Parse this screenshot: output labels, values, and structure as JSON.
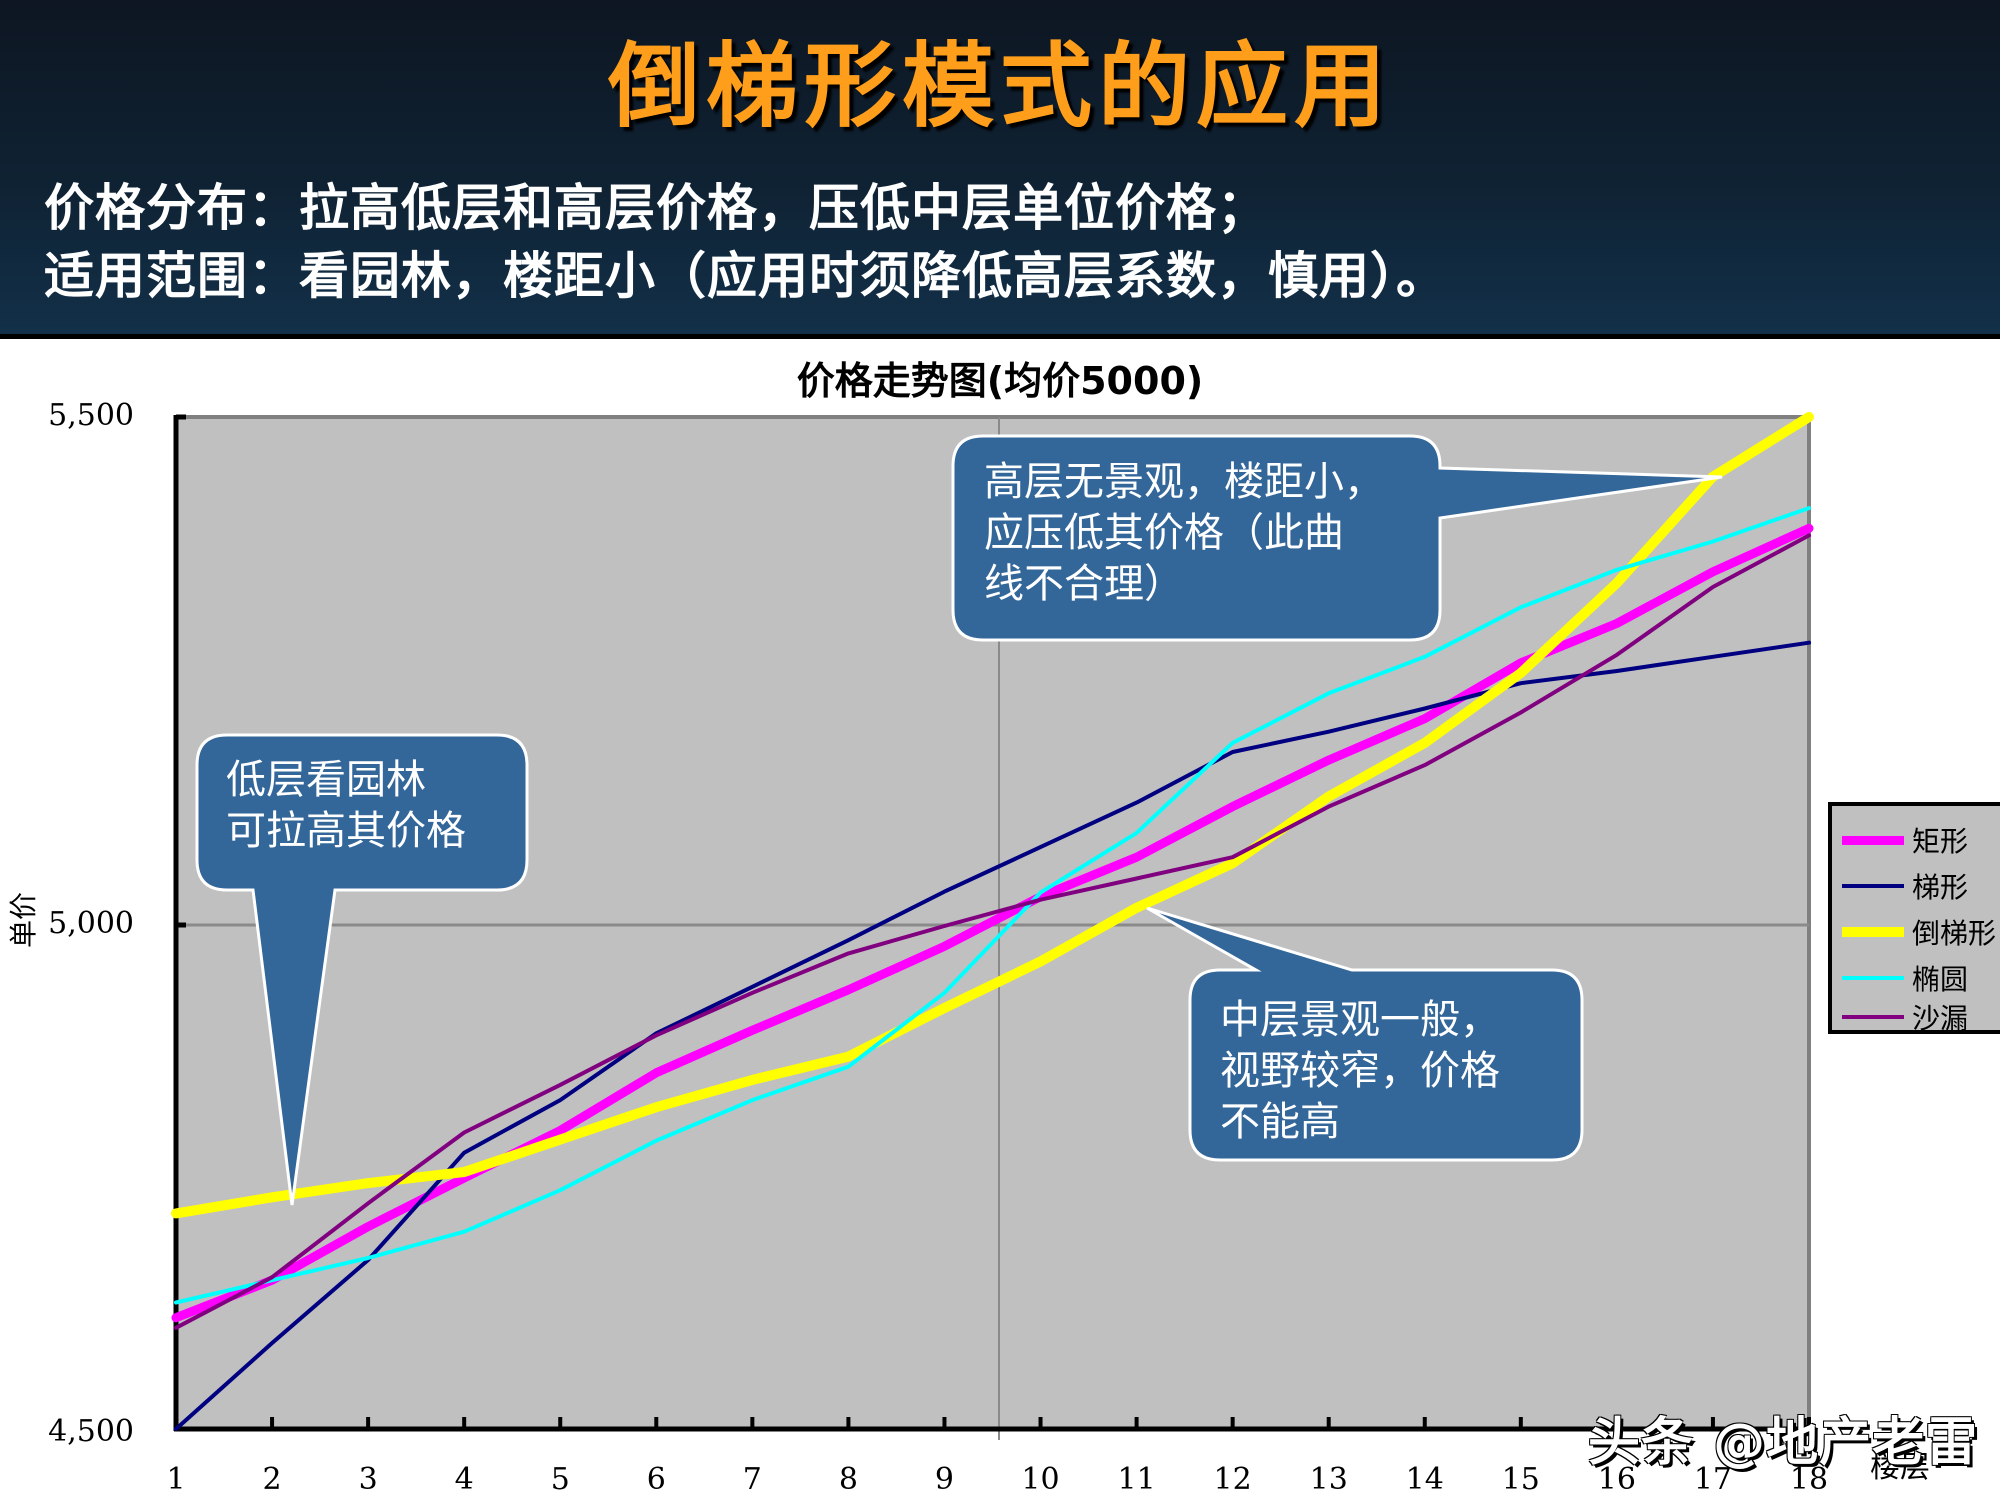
{
  "slide": {
    "title": "倒梯形模式的应用",
    "subtitle_lines": [
      "价格分布：拉高低层和高层价格，压低中层单位价格；",
      "适用范围：看园林，楼距小（应用时须降低高层系数，慎用）。"
    ],
    "colors": {
      "header_bg": "#0f2233",
      "title": "#ff9e1b",
      "subtitle": "#ffffff",
      "callout_bg": "#336699",
      "plot_bg": "#c0c0c0"
    }
  },
  "callouts": [
    {
      "id": "high-floor-note",
      "lines": [
        "高层无景观，楼距小，",
        "应压低其价格（此曲",
        "线不合理）"
      ]
    },
    {
      "id": "low-floor-note",
      "lines": [
        "低层看园林",
        "可拉高其价格"
      ]
    },
    {
      "id": "mid-floor-note",
      "lines": [
        "中层景观一般，",
        "视野较窄，价格",
        "不能高"
      ]
    }
  ],
  "watermark": "头条 @地产老雷",
  "chart_data": {
    "type": "line",
    "title": "价格走势图(均价5000)",
    "xlabel": "楼层",
    "ylabel": "单价",
    "x": [
      1,
      2,
      3,
      4,
      5,
      6,
      7,
      8,
      9,
      10,
      11,
      12,
      13,
      14,
      15,
      16,
      17,
      18
    ],
    "x_tick_labels": [
      "1",
      "2",
      "3",
      "4",
      "5",
      "6",
      "7",
      "8",
      "9",
      "10",
      "11",
      "12",
      "13",
      "14",
      "15",
      "16",
      "17",
      "18"
    ],
    "y_tick_labels": [
      "5,500",
      "5,000",
      "4,500"
    ],
    "ylim": [
      4500,
      5500
    ],
    "grid": {
      "horizontal_at": 5000,
      "vertical_at_x": 9.6
    },
    "legend_position": "right",
    "series": [
      {
        "name": "矩形",
        "color": "#ff00ff",
        "width": 9,
        "values": [
          4610,
          4647,
          4700,
          4748,
          4795,
          4852,
          4894,
          4934,
          4977,
          5026,
          5065,
          5115,
          5161,
          5202,
          5257,
          5296,
          5347,
          5390
        ]
      },
      {
        "name": "梯形",
        "color": "#000080",
        "width": 4,
        "values": [
          4500,
          4585,
          4667,
          4773,
          4825,
          4891,
          4937,
          4983,
          5031,
          5075,
          5119,
          5169,
          5189,
          5212,
          5237,
          5249,
          5263,
          5277
        ]
      },
      {
        "name": "倒梯形",
        "color": "#ffff00",
        "width": 10,
        "values": [
          4713,
          4729,
          4743,
          4754,
          4786,
          4818,
          4845,
          4868,
          4916,
          4962,
          5015,
          5059,
          5125,
          5178,
          5247,
          5336,
          5441,
          5504
        ]
      },
      {
        "name": "椭圆",
        "color": "#00ffff",
        "width": 4,
        "values": [
          4625,
          4647,
          4669,
          4695,
          4736,
          4785,
          4825,
          4858,
          4931,
          5030,
          5089,
          5178,
          5227,
          5263,
          5312,
          5349,
          5377,
          5410
        ]
      },
      {
        "name": "沙漏",
        "color": "#800080",
        "width": 4,
        "values": [
          4600,
          4650,
          4723,
          4793,
          4840,
          4889,
          4931,
          4970,
          4997,
          5023,
          5044,
          5065,
          5115,
          5156,
          5208,
          5265,
          5332,
          5383
        ]
      }
    ]
  }
}
